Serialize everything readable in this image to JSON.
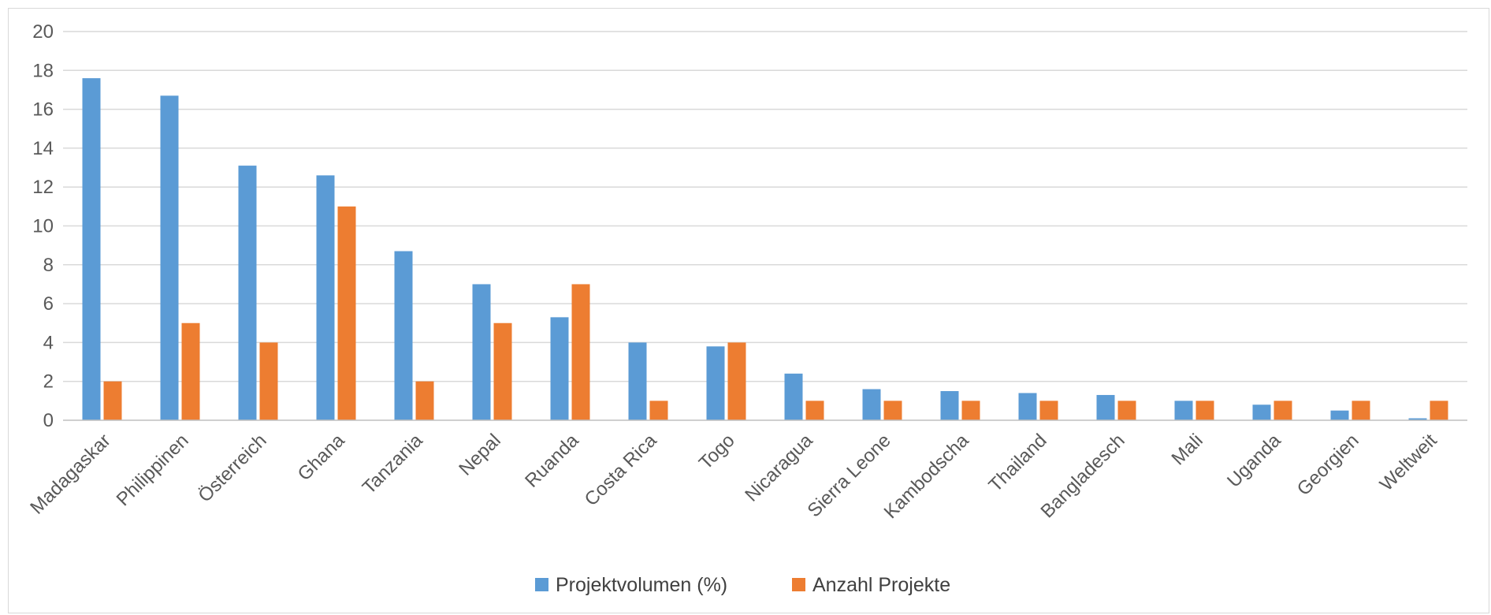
{
  "chart_data": {
    "type": "bar",
    "title": "",
    "xlabel": "",
    "ylabel": "",
    "ylim": [
      0,
      20
    ],
    "y_ticks": [
      0,
      2,
      4,
      6,
      8,
      10,
      12,
      14,
      16,
      18,
      20
    ],
    "grid": true,
    "legend_position": "bottom",
    "categories": [
      "Madagaskar",
      "Philippinen",
      "Österreich",
      "Ghana",
      "Tanzania",
      "Nepal",
      "Ruanda",
      "Costa Rica",
      "Togo",
      "Nicaragua",
      "Sierra Leone",
      "Kambodscha",
      "Thailand",
      "Bangladesch",
      "Mali",
      "Uganda",
      "Georgien",
      "Weltweit"
    ],
    "series": [
      {
        "name": "Projektvolumen (%)",
        "color": "#5b9bd5",
        "values": [
          17.6,
          16.7,
          13.1,
          12.6,
          8.7,
          7.0,
          5.3,
          4.0,
          3.8,
          2.4,
          1.6,
          1.5,
          1.4,
          1.3,
          1.0,
          0.8,
          0.5,
          0.1
        ]
      },
      {
        "name": "Anzahl Projekte",
        "color": "#ed7d31",
        "values": [
          2,
          5,
          4,
          11,
          2,
          5,
          7,
          1,
          4,
          1,
          1,
          1,
          1,
          1,
          1,
          1,
          1,
          1
        ]
      }
    ]
  }
}
